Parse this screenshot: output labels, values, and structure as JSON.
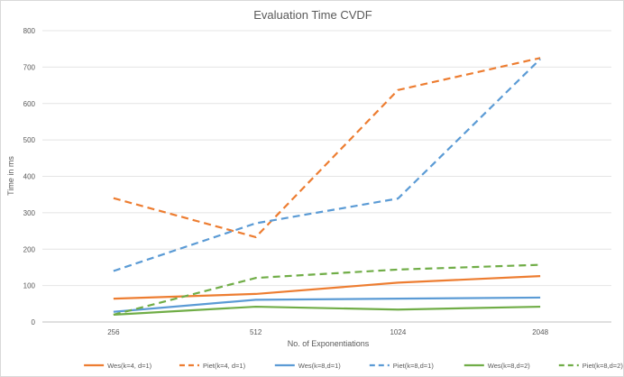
{
  "chart_data": {
    "type": "line",
    "title": "Evaluation Time CVDF",
    "xlabel": "No. of Exponentiations",
    "ylabel": "Time in ms",
    "categories": [
      "256",
      "512",
      "1024",
      "2048"
    ],
    "ylim": [
      0,
      800
    ],
    "yticks": [
      "0",
      "100",
      "200",
      "300",
      "400",
      "500",
      "600",
      "700",
      "800"
    ],
    "grid": true,
    "legend_position": "bottom",
    "series": [
      {
        "name": "Wes(k=4, d=1)",
        "values": [
          64,
          77,
          108,
          126
        ],
        "color": "#ED7D31",
        "dashed": false
      },
      {
        "name": "Piet(k=4, d=1)",
        "values": [
          340,
          233,
          637,
          725
        ],
        "color": "#ED7D31",
        "dashed": true
      },
      {
        "name": "Wes(k=8,d=1)",
        "values": [
          28,
          61,
          64,
          67
        ],
        "color": "#5B9BD5",
        "dashed": false
      },
      {
        "name": "Piet(k=8,d=1)",
        "values": [
          140,
          271,
          339,
          722
        ],
        "color": "#5B9BD5",
        "dashed": true
      },
      {
        "name": "Wes(k=8,d=2)",
        "values": [
          20,
          42,
          34,
          42
        ],
        "color": "#70AD47",
        "dashed": false
      },
      {
        "name": "Piet(k=8,d=2)",
        "values": [
          20,
          121,
          144,
          157
        ],
        "color": "#70AD47",
        "dashed": true
      }
    ]
  }
}
